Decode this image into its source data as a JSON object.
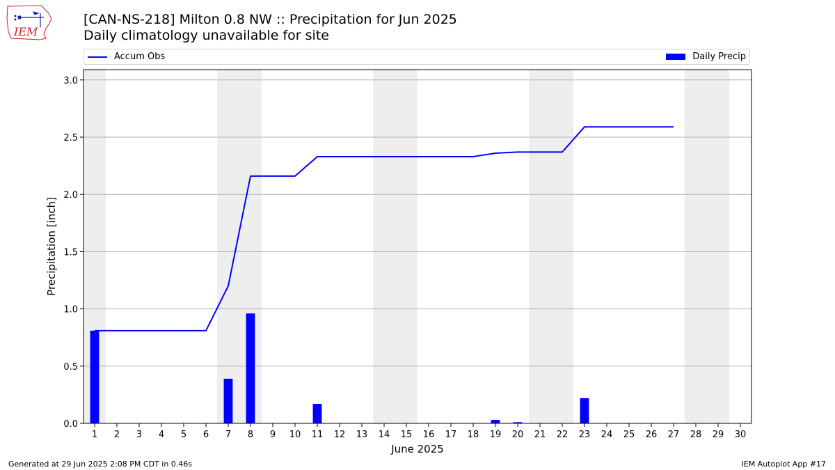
{
  "header": {
    "title": "[CAN-NS-218] Milton 0.8 NW :: Precipitation for Jun 2025",
    "subtitle": "Daily climatology unavailable for site"
  },
  "logo": {
    "text": "IEM",
    "icon": "iem-iowa-logo",
    "color": "#d11c1c"
  },
  "footer": {
    "left": "Generated at 29 Jun 2025 2:08 PM CDT in 0.46s",
    "right": "IEM Autoplot App #17"
  },
  "chart_data": {
    "type": "bar",
    "xlabel": "June 2025",
    "ylabel": "Precipitation [inch]",
    "ylim": [
      0,
      3.09
    ],
    "xlim": [
      0.5,
      30.5
    ],
    "yticks": [
      0.0,
      0.5,
      1.0,
      1.5,
      2.0,
      2.5,
      3.0
    ],
    "ytick_labels": [
      "0.0",
      "0.5",
      "1.0",
      "1.5",
      "2.0",
      "2.5",
      "3.0"
    ],
    "x": [
      1,
      2,
      3,
      4,
      5,
      6,
      7,
      8,
      9,
      10,
      11,
      12,
      13,
      14,
      15,
      16,
      17,
      18,
      19,
      20,
      21,
      22,
      23,
      24,
      25,
      26,
      27,
      28,
      29,
      30
    ],
    "xtick_labels": [
      "1",
      "2",
      "3",
      "4",
      "5",
      "6",
      "7",
      "8",
      "9",
      "10",
      "11",
      "12",
      "13",
      "14",
      "15",
      "16",
      "17",
      "18",
      "19",
      "20",
      "21",
      "22",
      "23",
      "24",
      "25",
      "26",
      "27",
      "28",
      "29",
      "30"
    ],
    "weekend_bands": [
      [
        0.5,
        1.5
      ],
      [
        6.5,
        8.5
      ],
      [
        13.5,
        15.5
      ],
      [
        20.5,
        22.5
      ],
      [
        27.5,
        29.5
      ]
    ],
    "grid": "horizontal",
    "legend_placement": "top, above plot",
    "series": [
      {
        "name": "Daily Precip",
        "kind": "bar",
        "color": "#0000ff",
        "x": [
          1,
          7,
          8,
          11,
          19,
          20,
          23
        ],
        "values": [
          0.81,
          0.39,
          0.96,
          0.17,
          0.03,
          0.01,
          0.22
        ]
      },
      {
        "name": "Accum Obs",
        "kind": "line",
        "color": "#0000ff",
        "x": [
          1,
          2,
          3,
          4,
          5,
          6,
          7,
          8,
          9,
          10,
          11,
          12,
          13,
          14,
          15,
          16,
          17,
          18,
          19,
          20,
          21,
          22,
          23,
          24,
          25,
          26,
          27
        ],
        "values": [
          0.81,
          0.81,
          0.81,
          0.81,
          0.81,
          0.81,
          1.2,
          2.16,
          2.16,
          2.16,
          2.33,
          2.33,
          2.33,
          2.33,
          2.33,
          2.33,
          2.33,
          2.33,
          2.36,
          2.37,
          2.37,
          2.37,
          2.59,
          2.59,
          2.59,
          2.59,
          2.59
        ]
      }
    ]
  }
}
